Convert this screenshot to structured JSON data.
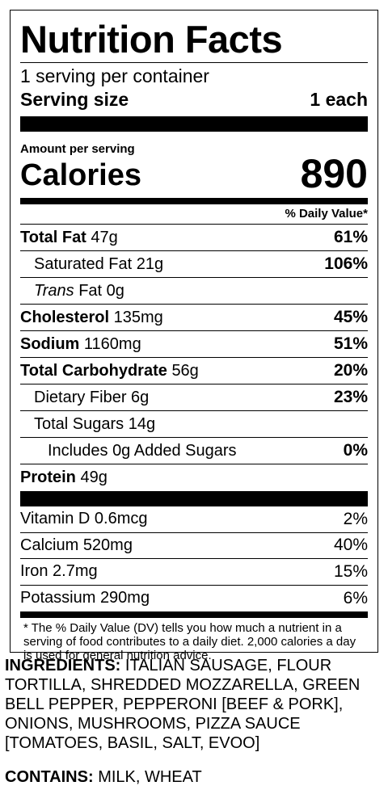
{
  "title": "Nutrition Facts",
  "servings_per_container": "1 serving per container",
  "serving_size": {
    "label": "Serving size",
    "value": "1 each"
  },
  "amount_per_serving": "Amount per serving",
  "calories": {
    "label": "Calories",
    "value": "890"
  },
  "daily_value_header": "% Daily Value*",
  "nutrients": [
    {
      "name": "Total Fat",
      "amount": "47g",
      "dv": "61%"
    },
    {
      "name": "Saturated Fat",
      "amount": "21g",
      "dv": "106%"
    },
    {
      "name": "Trans",
      "name_suffix": "Fat",
      "amount": "0g",
      "dv": ""
    },
    {
      "name": "Cholesterol",
      "amount": "135mg",
      "dv": "45%"
    },
    {
      "name": "Sodium",
      "amount": "1160mg",
      "dv": "51%"
    },
    {
      "name": "Total Carbohydrate",
      "amount": "56g",
      "dv": "20%"
    },
    {
      "name": "Dietary Fiber",
      "amount": "6g",
      "dv": "23%"
    },
    {
      "name": "Total Sugars",
      "amount": "14g",
      "dv": ""
    },
    {
      "name": "Includes",
      "amount": "0g",
      "name_suffix": "Added Sugars",
      "dv": "0%"
    },
    {
      "name": "Protein",
      "amount": "49g",
      "dv": ""
    }
  ],
  "vitamins": [
    {
      "name": "Vitamin D",
      "amount": "0.6mcg",
      "dv": "2%"
    },
    {
      "name": "Calcium",
      "amount": "520mg",
      "dv": "40%"
    },
    {
      "name": "Iron",
      "amount": "2.7mg",
      "dv": "15%"
    },
    {
      "name": "Potassium",
      "amount": "290mg",
      "dv": "6%"
    }
  ],
  "footnote": "* The % Daily Value (DV) tells you how much a nutrient in a serving of food contributes to a daily diet. 2,000 calories a day is used for general nutrition advice.",
  "ingredients": {
    "label": "INGREDIENTS:",
    "text": "ITALIAN SAUSAGE, FLOUR TORTILLA, SHREDDED MOZZARELLA, GREEN BELL PEPPER, PEPPERONI [BEEF & PORK], ONIONS, MUSHROOMS, PIZZA SAUCE [TOMATOES, BASIL, SALT, EVOO]"
  },
  "contains": {
    "label": "CONTAINS:",
    "text": "MILK, WHEAT"
  }
}
